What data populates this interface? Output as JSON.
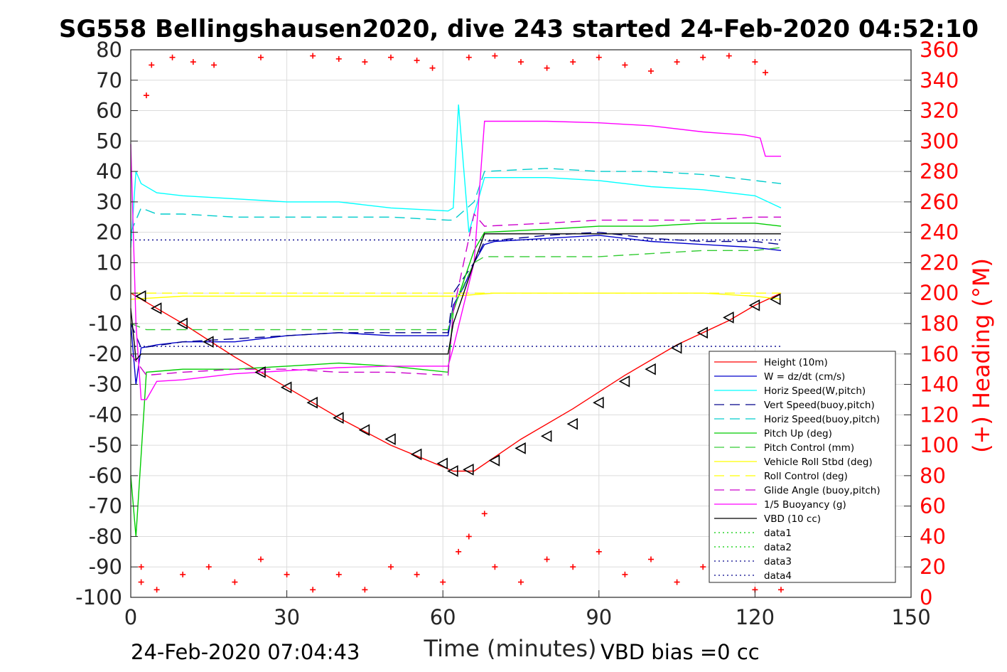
{
  "chart_data": {
    "type": "line",
    "title": "SG558 Bellingshausen2020, dive 243 started 24-Feb-2020 04:52:10",
    "xlabel": "Time (minutes)",
    "ylabel_right": "(+) Heading (°M)",
    "xlim": [
      0,
      150
    ],
    "ylim": [
      -100,
      80
    ],
    "ylim_right": [
      0,
      360
    ],
    "x_ticks": [
      "0",
      "30",
      "60",
      "90",
      "120",
      "150"
    ],
    "y_ticks": [
      "-100",
      "-90",
      "-80",
      "-70",
      "-60",
      "-50",
      "-40",
      "-30",
      "-20",
      "-10",
      "0",
      "10",
      "20",
      "30",
      "40",
      "50",
      "60",
      "70",
      "80"
    ],
    "y_right_ticks": [
      "0",
      "20",
      "40",
      "60",
      "80",
      "100",
      "120",
      "140",
      "160",
      "180",
      "200",
      "220",
      "240",
      "260",
      "280",
      "300",
      "320",
      "340",
      "360"
    ],
    "grid": true,
    "legend_position": "lower-right",
    "footer_left": "24-Feb-2020 07:04:43",
    "footer_right": "VBD bias =0 cc",
    "series": [
      {
        "name": "Height (10m)",
        "color": "#ff0000",
        "style": "solid",
        "x": [
          0,
          10,
          20,
          30,
          40,
          50,
          62,
          66,
          75,
          85,
          95,
          105,
          115,
          120,
          125
        ],
        "y": [
          0,
          -10,
          -21,
          -31,
          -41,
          -50,
          -58.5,
          -58.5,
          -48,
          -38,
          -27,
          -17,
          -9,
          -4,
          0
        ]
      },
      {
        "name": "W = dz/dt (cm/s)",
        "color": "#0000cc",
        "style": "solid",
        "x": [
          0,
          1,
          2,
          5,
          10,
          20,
          30,
          40,
          50,
          61,
          62,
          64,
          66,
          68,
          70,
          80,
          90,
          100,
          110,
          120,
          125
        ],
        "y": [
          -10,
          -30,
          -18,
          -17,
          -16,
          -16,
          -14,
          -13,
          -14,
          -14,
          -4,
          2,
          10,
          16,
          17,
          18,
          19,
          17,
          16,
          15,
          14
        ]
      },
      {
        "name": "Horiz Speed(W,pitch)",
        "color": "#00ffff",
        "style": "solid",
        "x": [
          0,
          1,
          2,
          5,
          10,
          20,
          30,
          40,
          50,
          61,
          62,
          63,
          65,
          68,
          70,
          80,
          90,
          100,
          110,
          120,
          125
        ],
        "y": [
          15,
          40,
          36,
          33,
          32,
          31,
          30,
          30,
          28,
          27,
          28,
          62,
          20,
          38,
          38,
          38,
          37,
          35,
          34,
          32,
          28
        ]
      },
      {
        "name": "Vert Speed(buoy,pitch)",
        "color": "#00008b",
        "style": "dashed",
        "x": [
          0,
          2,
          10,
          20,
          30,
          40,
          50,
          61,
          62,
          66,
          68,
          80,
          90,
          100,
          110,
          120,
          125
        ],
        "y": [
          -10,
          -18,
          -16,
          -15,
          -14,
          -13,
          -13,
          -13,
          0,
          10,
          17,
          19,
          20,
          18,
          17,
          17,
          16
        ]
      },
      {
        "name": "Horiz Speed(buoy,pitch)",
        "color": "#00cccc",
        "style": "dashed",
        "x": [
          0,
          2,
          5,
          10,
          20,
          30,
          40,
          50,
          61,
          62,
          66,
          68,
          80,
          90,
          100,
          110,
          120,
          125
        ],
        "y": [
          20,
          28,
          26,
          26,
          25,
          25,
          25,
          25,
          24,
          24,
          30,
          40,
          41,
          40,
          40,
          39,
          37,
          36
        ]
      },
      {
        "name": "Pitch Up (deg)",
        "color": "#00cc00",
        "style": "solid",
        "x": [
          0,
          1,
          3,
          10,
          20,
          30,
          40,
          50,
          61,
          62,
          66,
          68,
          80,
          90,
          100,
          110,
          120,
          125
        ],
        "y": [
          -60,
          -80,
          -26,
          -25,
          -25,
          -24,
          -23,
          -24,
          -26,
          -6,
          14,
          20,
          21,
          22,
          22,
          23,
          23,
          22
        ]
      },
      {
        "name": "Pitch Control (mm)",
        "color": "#33cc33",
        "style": "dashed",
        "x": [
          0,
          3,
          10,
          20,
          30,
          40,
          50,
          61,
          62,
          66,
          68,
          80,
          90,
          100,
          110,
          120,
          125
        ],
        "y": [
          -10,
          -12,
          -12,
          -12,
          -12,
          -12,
          -12,
          -12,
          -5,
          10,
          12,
          12,
          12,
          13,
          14,
          14,
          15
        ]
      },
      {
        "name": "Vehicle Roll Stbd (deg)",
        "color": "#ffff00",
        "style": "solid",
        "x": [
          0,
          10,
          20,
          30,
          40,
          50,
          60,
          62,
          70,
          80,
          90,
          100,
          110,
          120,
          125
        ],
        "y": [
          -2,
          -1,
          -1,
          -1,
          -1,
          -1,
          -1,
          -1,
          0,
          0,
          0,
          0,
          0,
          -1,
          -2
        ]
      },
      {
        "name": "Roll Control (deg)",
        "color": "#ffff00",
        "style": "dashed",
        "x": [
          0,
          10,
          20,
          30,
          40,
          50,
          60,
          62,
          70,
          80,
          90,
          100,
          110,
          120,
          125
        ],
        "y": [
          0,
          0,
          0,
          0,
          0,
          0,
          0,
          0,
          0,
          0,
          0,
          0,
          0,
          0,
          0
        ]
      },
      {
        "name": "Glide Angle (buoy,pitch)",
        "color": "#cc00cc",
        "style": "dashed",
        "x": [
          0,
          3,
          10,
          20,
          30,
          40,
          50,
          61,
          62,
          66,
          68,
          80,
          90,
          100,
          110,
          120,
          125
        ],
        "y": [
          -20,
          -27,
          -26,
          -25,
          -25,
          -26,
          -26,
          -27,
          -6,
          26,
          22,
          23,
          24,
          24,
          24,
          25,
          25
        ]
      },
      {
        "name": "1/5 Buoyancy (g)",
        "color": "#ff00ff",
        "style": "solid",
        "x": [
          0,
          1,
          2,
          3,
          5,
          10,
          20,
          30,
          40,
          50,
          61,
          62,
          66,
          68,
          70,
          80,
          90,
          100,
          110,
          118,
          121,
          122,
          125
        ],
        "y": [
          49,
          -10,
          -35,
          -35,
          -29,
          -28.5,
          -26.5,
          -25.5,
          -24.5,
          -24,
          -24,
          -18,
          10,
          56.5,
          56.5,
          56.5,
          56,
          55,
          53,
          52,
          51,
          45,
          45
        ]
      },
      {
        "name": "VBD (10 cc)",
        "color": "#000000",
        "style": "solid",
        "x": [
          0,
          1,
          2,
          3,
          61,
          62,
          64,
          66,
          68,
          125
        ],
        "y": [
          -5,
          -22,
          -20,
          -20,
          -20,
          -10,
          0,
          10,
          19.5,
          19.5
        ]
      },
      {
        "name": "data1",
        "color": "#00cc00",
        "style": "dotted",
        "x": [],
        "y": []
      },
      {
        "name": "data2",
        "color": "#00cc00",
        "style": "dotted",
        "x": [],
        "y": []
      },
      {
        "name": "data3",
        "color": "#00008b",
        "style": "dotted",
        "x": [
          0,
          125
        ],
        "y": [
          17.5,
          17.5
        ]
      },
      {
        "name": "data4",
        "color": "#00008b",
        "style": "dotted",
        "x": [
          0,
          125
        ],
        "y": [
          -17.5,
          -17.5
        ]
      }
    ],
    "heading_series": {
      "name": "Heading",
      "axis": "right",
      "color": "#ff0000",
      "marker": "+",
      "x": [
        2,
        3,
        4,
        8,
        12,
        16,
        25,
        35,
        40,
        45,
        50,
        55,
        58,
        65,
        70,
        75,
        80,
        85,
        90,
        95,
        100,
        105,
        110,
        115,
        120,
        122,
        2,
        5,
        10,
        15,
        20,
        25,
        30,
        35,
        40,
        45,
        50,
        55,
        60,
        63,
        65,
        68,
        70,
        75,
        80,
        85,
        90,
        95,
        100,
        105,
        110,
        115,
        120,
        125
      ],
      "y": [
        10,
        330,
        350,
        355,
        352,
        350,
        355,
        356,
        354,
        352,
        355,
        353,
        348,
        355,
        356,
        352,
        348,
        352,
        355,
        350,
        346,
        352,
        355,
        356,
        352,
        345,
        20,
        5,
        15,
        20,
        10,
        25,
        15,
        5,
        15,
        5,
        20,
        15,
        10,
        30,
        40,
        55,
        20,
        10,
        25,
        20,
        30,
        15,
        25,
        10,
        20,
        15,
        5,
        5
      ]
    },
    "markers_triangle": {
      "x": [
        2,
        5,
        10,
        15,
        25,
        30,
        35,
        40,
        45,
        50,
        55,
        60,
        62,
        65,
        70,
        75,
        80,
        85,
        90,
        95,
        100,
        105,
        110,
        115,
        120,
        124
      ],
      "y": [
        -1,
        -5,
        -10,
        -16,
        -26,
        -31,
        -36,
        -41,
        -45,
        -48,
        -53,
        -56,
        -58.5,
        -58,
        -55,
        -51,
        -47,
        -43,
        -36,
        -29,
        -25,
        -18,
        -13,
        -8,
        -4,
        -2
      ]
    }
  }
}
